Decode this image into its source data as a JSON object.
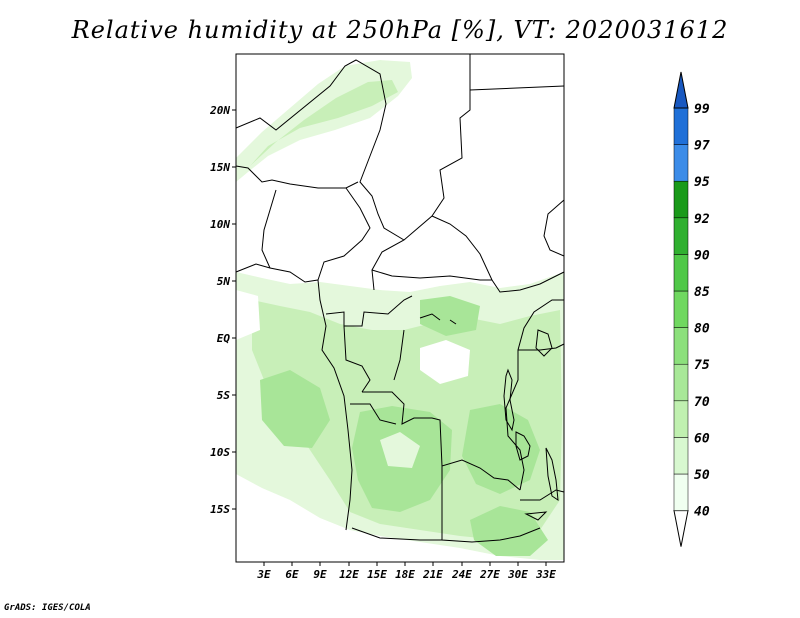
{
  "title": "Relative humidity at 250hPa [%], VT: 2020031612",
  "footer": "GrADS: IGES/COLA",
  "map": {
    "lat_labels": [
      "20N",
      "15N",
      "10N",
      "5N",
      "EQ",
      "5S",
      "10S",
      "15S"
    ],
    "lon_labels": [
      "3E",
      "6E",
      "9E",
      "12E",
      "15E",
      "18E",
      "21E",
      "24E",
      "27E",
      "30E",
      "33E"
    ]
  },
  "colorbar": {
    "levels": [
      "40",
      "50",
      "60",
      "70",
      "75",
      "80",
      "85",
      "90",
      "92",
      "95",
      "97",
      "99"
    ],
    "colors": [
      "#f0fff0",
      "#d8f8d0",
      "#c0f0b0",
      "#a8e898",
      "#8ce07c",
      "#70d860",
      "#50c848",
      "#30b030",
      "#1a9a1a",
      "#3c8ce8",
      "#2070d8",
      "#1858c0"
    ]
  },
  "fill_colors": {
    "light": "#e4f8dc",
    "medium": "#c8efb8",
    "dark": "#a8e598"
  }
}
